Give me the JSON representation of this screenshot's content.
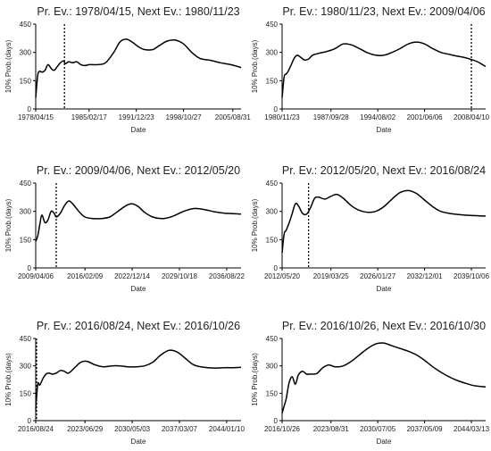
{
  "chart_data": [
    {
      "type": "line",
      "title": "Pr. Ev.: 1978/04/15, Next Ev.: 1980/11/23",
      "xlabel": "Date",
      "ylabel": "10% Prob.(days)",
      "ylim": [
        0,
        450
      ],
      "yticks": [
        "0",
        "150",
        "300",
        "450"
      ],
      "xlim": [
        0,
        1
      ],
      "xticks": [
        {
          "pos": 0.0,
          "label": "1978/04/15"
        },
        {
          "pos": 0.26,
          "label": "1985/02/17"
        },
        {
          "pos": 0.49,
          "label": "1991/12/23"
        },
        {
          "pos": 0.72,
          "label": "1998/10/27"
        },
        {
          "pos": 0.96,
          "label": "2005/08/31"
        }
      ],
      "event_line": 0.14,
      "x": [
        0,
        0.01,
        0.02,
        0.03,
        0.045,
        0.06,
        0.075,
        0.09,
        0.105,
        0.12,
        0.135,
        0.145,
        0.16,
        0.18,
        0.2,
        0.22,
        0.24,
        0.26,
        0.3,
        0.34,
        0.38,
        0.41,
        0.44,
        0.47,
        0.5,
        0.53,
        0.57,
        0.6,
        0.64,
        0.68,
        0.72,
        0.76,
        0.8,
        0.85,
        0.9,
        0.95,
        1.0
      ],
      "y": [
        60,
        180,
        200,
        195,
        205,
        235,
        215,
        205,
        225,
        245,
        255,
        240,
        250,
        245,
        250,
        235,
        230,
        235,
        235,
        245,
        300,
        355,
        370,
        355,
        330,
        315,
        315,
        335,
        360,
        365,
        345,
        300,
        268,
        258,
        245,
        235,
        220
      ]
    },
    {
      "type": "line",
      "title": "Pr. Ev.: 1980/11/23, Next Ev.: 2009/04/06",
      "xlabel": "Date",
      "ylabel": "10% Prob.(days)",
      "ylim": [
        0,
        450
      ],
      "yticks": [
        "0",
        "150",
        "300",
        "450"
      ],
      "xlim": [
        0,
        1
      ],
      "xticks": [
        {
          "pos": 0.0,
          "label": "1980/11/23"
        },
        {
          "pos": 0.24,
          "label": "1987/09/28"
        },
        {
          "pos": 0.47,
          "label": "1994/08/02"
        },
        {
          "pos": 0.7,
          "label": "2001/06/06"
        },
        {
          "pos": 0.93,
          "label": "2008/04/10"
        }
      ],
      "event_line": 0.93,
      "x": [
        0,
        0.01,
        0.02,
        0.03,
        0.045,
        0.06,
        0.075,
        0.09,
        0.11,
        0.13,
        0.15,
        0.18,
        0.22,
        0.26,
        0.3,
        0.34,
        0.38,
        0.42,
        0.46,
        0.5,
        0.54,
        0.58,
        0.62,
        0.66,
        0.7,
        0.74,
        0.78,
        0.82,
        0.86,
        0.9,
        0.93,
        0.96,
        1.0
      ],
      "y": [
        60,
        170,
        185,
        200,
        235,
        270,
        285,
        275,
        260,
        265,
        285,
        295,
        305,
        320,
        345,
        340,
        320,
        298,
        285,
        285,
        300,
        320,
        345,
        355,
        345,
        320,
        300,
        290,
        280,
        272,
        262,
        250,
        225
      ]
    },
    {
      "type": "line",
      "title": "Pr. Ev.: 2009/04/06, Next Ev.: 2012/05/20",
      "xlabel": "Date",
      "ylabel": "10% Prob.(days)",
      "ylim": [
        0,
        450
      ],
      "yticks": [
        "0",
        "150",
        "300",
        "450"
      ],
      "xlim": [
        0,
        1
      ],
      "xticks": [
        {
          "pos": 0.0,
          "label": "2009/04/06"
        },
        {
          "pos": 0.24,
          "label": "2016/02/09"
        },
        {
          "pos": 0.47,
          "label": "2022/12/14"
        },
        {
          "pos": 0.7,
          "label": "2029/10/18"
        },
        {
          "pos": 0.93,
          "label": "2036/08/22"
        }
      ],
      "event_line": 0.1,
      "x": [
        0,
        0.01,
        0.02,
        0.03,
        0.045,
        0.06,
        0.075,
        0.09,
        0.1,
        0.12,
        0.14,
        0.16,
        0.18,
        0.21,
        0.24,
        0.28,
        0.32,
        0.36,
        0.4,
        0.44,
        0.47,
        0.5,
        0.53,
        0.57,
        0.62,
        0.67,
        0.72,
        0.77,
        0.82,
        0.87,
        0.92,
        0.96,
        1.0
      ],
      "y": [
        140,
        170,
        230,
        280,
        240,
        255,
        300,
        290,
        270,
        290,
        330,
        355,
        340,
        300,
        270,
        262,
        262,
        270,
        300,
        330,
        340,
        325,
        295,
        270,
        262,
        275,
        300,
        315,
        310,
        298,
        290,
        288,
        285
      ]
    },
    {
      "type": "line",
      "title": "Pr. Ev.: 2012/05/20, Next Ev.: 2016/08/24",
      "xlabel": "Date",
      "ylabel": "10% Prob.(days)",
      "ylim": [
        0,
        450
      ],
      "yticks": [
        "0",
        "150",
        "300",
        "450"
      ],
      "xlim": [
        0,
        1
      ],
      "xticks": [
        {
          "pos": 0.0,
          "label": "2012/05/20"
        },
        {
          "pos": 0.24,
          "label": "2019/03/25"
        },
        {
          "pos": 0.47,
          "label": "2026/01/27"
        },
        {
          "pos": 0.7,
          "label": "2032/12/01"
        },
        {
          "pos": 0.93,
          "label": "2039/10/06"
        }
      ],
      "event_line": 0.13,
      "x": [
        0,
        0.01,
        0.02,
        0.035,
        0.05,
        0.065,
        0.08,
        0.1,
        0.12,
        0.14,
        0.16,
        0.18,
        0.21,
        0.24,
        0.27,
        0.3,
        0.34,
        0.38,
        0.42,
        0.46,
        0.5,
        0.54,
        0.58,
        0.62,
        0.66,
        0.7,
        0.74,
        0.78,
        0.83,
        0.88,
        0.93,
        0.97,
        1.0
      ],
      "y": [
        80,
        180,
        200,
        240,
        290,
        340,
        330,
        290,
        285,
        320,
        370,
        375,
        365,
        380,
        390,
        370,
        330,
        305,
        295,
        300,
        325,
        365,
        400,
        410,
        395,
        360,
        325,
        300,
        288,
        282,
        278,
        276,
        275
      ]
    },
    {
      "type": "line",
      "title": "Pr. Ev.: 2016/08/24, Next Ev.: 2016/10/26",
      "xlabel": "Date",
      "ylabel": "10% Prob.(days)",
      "ylim": [
        0,
        450
      ],
      "yticks": [
        "0",
        "150",
        "300",
        "450"
      ],
      "xlim": [
        0,
        1
      ],
      "xticks": [
        {
          "pos": 0.0,
          "label": "2016/08/24"
        },
        {
          "pos": 0.24,
          "label": "2023/06/29"
        },
        {
          "pos": 0.47,
          "label": "2030/05/03"
        },
        {
          "pos": 0.7,
          "label": "2037/03/07"
        },
        {
          "pos": 0.93,
          "label": "2044/01/10"
        }
      ],
      "event_line": 0.004,
      "x": [
        0,
        0.01,
        0.02,
        0.035,
        0.05,
        0.065,
        0.08,
        0.1,
        0.12,
        0.14,
        0.16,
        0.19,
        0.22,
        0.25,
        0.29,
        0.33,
        0.37,
        0.41,
        0.45,
        0.49,
        0.53,
        0.57,
        0.61,
        0.65,
        0.69,
        0.73,
        0.77,
        0.82,
        0.87,
        0.92,
        0.96,
        1.0
      ],
      "y": [
        60,
        200,
        195,
        230,
        255,
        260,
        255,
        260,
        275,
        270,
        260,
        290,
        320,
        325,
        305,
        295,
        300,
        300,
        295,
        295,
        300,
        320,
        360,
        385,
        375,
        340,
        305,
        292,
        288,
        290,
        290,
        292
      ]
    },
    {
      "type": "line",
      "title": "Pr. Ev.: 2016/10/26, Next Ev.: 2016/10/30",
      "xlabel": "Date",
      "ylabel": "10% Prob.(days)",
      "ylim": [
        0,
        450
      ],
      "yticks": [
        "0",
        "150",
        "300",
        "450"
      ],
      "xlim": [
        0,
        1
      ],
      "xticks": [
        {
          "pos": 0.0,
          "label": "2016/10/26"
        },
        {
          "pos": 0.24,
          "label": "2023/08/31"
        },
        {
          "pos": 0.47,
          "label": "2030/07/05"
        },
        {
          "pos": 0.7,
          "label": "2037/05/09"
        },
        {
          "pos": 0.93,
          "label": "2044/03/13"
        }
      ],
      "event_line": null,
      "x": [
        0,
        0.01,
        0.02,
        0.035,
        0.05,
        0.065,
        0.08,
        0.1,
        0.12,
        0.14,
        0.17,
        0.2,
        0.23,
        0.26,
        0.3,
        0.34,
        0.38,
        0.42,
        0.46,
        0.5,
        0.54,
        0.58,
        0.62,
        0.66,
        0.7,
        0.74,
        0.78,
        0.82,
        0.86,
        0.9,
        0.94,
        0.97,
        1.0
      ],
      "y": [
        40,
        80,
        120,
        210,
        240,
        200,
        250,
        270,
        255,
        255,
        258,
        290,
        305,
        295,
        300,
        325,
        360,
        395,
        420,
        425,
        410,
        395,
        380,
        360,
        330,
        295,
        265,
        240,
        220,
        205,
        192,
        188,
        185
      ]
    }
  ]
}
